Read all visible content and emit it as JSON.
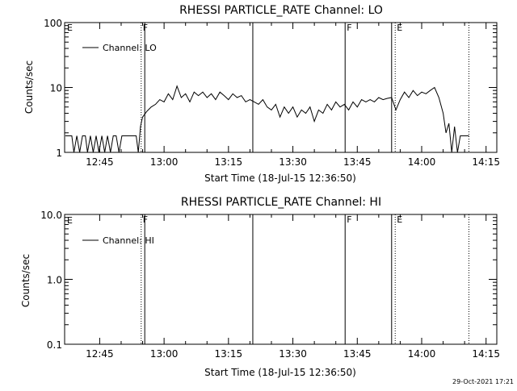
{
  "chart_data": [
    {
      "type": "line",
      "title": "RHESSI PARTICLE_RATE Channel: LO",
      "xlabel": "Start Time (18-Jul-15 12:36:50)",
      "ylabel": "Counts/sec",
      "y_scale": "log",
      "ylim": [
        1,
        100
      ],
      "xlim": [
        "12:36:50",
        "14:17:30"
      ],
      "x_ticks": [
        "12:45",
        "13:00",
        "13:15",
        "13:30",
        "13:45",
        "14:00",
        "14:15"
      ],
      "y_ticks": [
        "1",
        "10",
        "100"
      ],
      "legend": {
        "label": "Channel: LO",
        "placement": "top-left"
      },
      "markers": [
        {
          "time": "12:54:40",
          "label": "F",
          "style": "dotted"
        },
        {
          "time": "12:55:30",
          "label": "",
          "style": "solid"
        },
        {
          "time": "13:20:40",
          "label": "",
          "style": "solid"
        },
        {
          "time": "13:42:10",
          "label": "F",
          "style": "solid"
        },
        {
          "time": "13:53:00",
          "label": "",
          "style": "solid"
        },
        {
          "time": "13:53:50",
          "label": "E",
          "style": "dotted"
        },
        {
          "time": "14:11:00",
          "label": "",
          "style": "dotted"
        }
      ],
      "corner_label": "E",
      "series": [
        {
          "values": [
            {
              "x": "12:37:00",
              "y": 1.8
            },
            {
              "x": "12:38:30",
              "y": 1.8
            },
            {
              "x": "12:39:00",
              "y": 1.0
            },
            {
              "x": "12:39:40",
              "y": 1.8
            },
            {
              "x": "12:40:20",
              "y": 1.0
            },
            {
              "x": "12:41:00",
              "y": 1.8
            },
            {
              "x": "12:41:40",
              "y": 1.8
            },
            {
              "x": "12:42:10",
              "y": 1.0
            },
            {
              "x": "12:42:50",
              "y": 1.8
            },
            {
              "x": "12:43:30",
              "y": 1.0
            },
            {
              "x": "12:44:10",
              "y": 1.8
            },
            {
              "x": "12:44:50",
              "y": 1.0
            },
            {
              "x": "12:45:30",
              "y": 1.8
            },
            {
              "x": "12:46:10",
              "y": 1.0
            },
            {
              "x": "12:46:50",
              "y": 1.8
            },
            {
              "x": "12:47:30",
              "y": 1.0
            },
            {
              "x": "12:48:10",
              "y": 1.8
            },
            {
              "x": "12:48:50",
              "y": 1.8
            },
            {
              "x": "12:49:30",
              "y": 1.0
            },
            {
              "x": "12:50:10",
              "y": 1.8
            },
            {
              "x": "12:51:00",
              "y": 1.8
            },
            {
              "x": "12:52:30",
              "y": 1.8
            },
            {
              "x": "12:53:30",
              "y": 1.8
            },
            {
              "x": "12:54:00",
              "y": 1.0
            },
            {
              "x": "12:54:30",
              "y": 2.5
            },
            {
              "x": "12:55:00",
              "y": 3.5
            },
            {
              "x": "12:56:00",
              "y": 4.3
            },
            {
              "x": "12:57:00",
              "y": 5.0
            },
            {
              "x": "12:58:00",
              "y": 5.5
            },
            {
              "x": "12:59:00",
              "y": 6.5
            },
            {
              "x": "13:00:00",
              "y": 6.0
            },
            {
              "x": "13:01:00",
              "y": 8.0
            },
            {
              "x": "13:02:00",
              "y": 6.5
            },
            {
              "x": "13:03:00",
              "y": 10.5
            },
            {
              "x": "13:04:00",
              "y": 7.0
            },
            {
              "x": "13:05:00",
              "y": 8.0
            },
            {
              "x": "13:06:00",
              "y": 6.0
            },
            {
              "x": "13:07:00",
              "y": 8.5
            },
            {
              "x": "13:08:00",
              "y": 7.5
            },
            {
              "x": "13:09:00",
              "y": 8.5
            },
            {
              "x": "13:10:00",
              "y": 7.0
            },
            {
              "x": "13:11:00",
              "y": 8.0
            },
            {
              "x": "13:12:00",
              "y": 6.5
            },
            {
              "x": "13:13:00",
              "y": 8.5
            },
            {
              "x": "13:14:00",
              "y": 7.5
            },
            {
              "x": "13:15:00",
              "y": 6.5
            },
            {
              "x": "13:16:00",
              "y": 8.0
            },
            {
              "x": "13:17:00",
              "y": 7.0
            },
            {
              "x": "13:18:00",
              "y": 7.5
            },
            {
              "x": "13:19:00",
              "y": 6.0
            },
            {
              "x": "13:20:00",
              "y": 6.5
            },
            {
              "x": "13:21:00",
              "y": 6.0
            },
            {
              "x": "13:22:00",
              "y": 5.5
            },
            {
              "x": "13:23:00",
              "y": 6.5
            },
            {
              "x": "13:24:00",
              "y": 5.0
            },
            {
              "x": "13:25:00",
              "y": 4.5
            },
            {
              "x": "13:26:00",
              "y": 5.5
            },
            {
              "x": "13:27:00",
              "y": 3.5
            },
            {
              "x": "13:28:00",
              "y": 5.0
            },
            {
              "x": "13:29:00",
              "y": 4.0
            },
            {
              "x": "13:30:00",
              "y": 5.0
            },
            {
              "x": "13:31:00",
              "y": 3.5
            },
            {
              "x": "13:32:00",
              "y": 4.5
            },
            {
              "x": "13:33:00",
              "y": 4.0
            },
            {
              "x": "13:34:00",
              "y": 5.0
            },
            {
              "x": "13:35:00",
              "y": 3.0
            },
            {
              "x": "13:36:00",
              "y": 4.5
            },
            {
              "x": "13:37:00",
              "y": 4.0
            },
            {
              "x": "13:38:00",
              "y": 5.5
            },
            {
              "x": "13:39:00",
              "y": 4.5
            },
            {
              "x": "13:40:00",
              "y": 6.0
            },
            {
              "x": "13:41:00",
              "y": 5.0
            },
            {
              "x": "13:42:00",
              "y": 5.5
            },
            {
              "x": "13:43:00",
              "y": 4.5
            },
            {
              "x": "13:44:00",
              "y": 6.0
            },
            {
              "x": "13:45:00",
              "y": 5.0
            },
            {
              "x": "13:46:00",
              "y": 6.5
            },
            {
              "x": "13:47:00",
              "y": 6.0
            },
            {
              "x": "13:48:00",
              "y": 6.5
            },
            {
              "x": "13:49:00",
              "y": 6.0
            },
            {
              "x": "13:50:00",
              "y": 7.0
            },
            {
              "x": "13:51:00",
              "y": 6.5
            },
            {
              "x": "13:52:00",
              "y": 6.8
            },
            {
              "x": "13:53:00",
              "y": 7.0
            },
            {
              "x": "13:54:00",
              "y": 4.5
            },
            {
              "x": "13:55:00",
              "y": 6.5
            },
            {
              "x": "13:56:00",
              "y": 8.5
            },
            {
              "x": "13:57:00",
              "y": 7.0
            },
            {
              "x": "13:58:00",
              "y": 9.0
            },
            {
              "x": "13:59:00",
              "y": 7.5
            },
            {
              "x": "14:00:00",
              "y": 8.5
            },
            {
              "x": "14:01:00",
              "y": 8.0
            },
            {
              "x": "14:02:00",
              "y": 9.0
            },
            {
              "x": "14:03:00",
              "y": 10.0
            },
            {
              "x": "14:04:00",
              "y": 7.0
            },
            {
              "x": "14:05:00",
              "y": 4.0
            },
            {
              "x": "14:05:40",
              "y": 2.0
            },
            {
              "x": "14:06:20",
              "y": 2.8
            },
            {
              "x": "14:07:00",
              "y": 1.0
            },
            {
              "x": "14:07:40",
              "y": 2.5
            },
            {
              "x": "14:08:20",
              "y": 1.0
            },
            {
              "x": "14:09:00",
              "y": 1.8
            },
            {
              "x": "14:10:00",
              "y": 1.8
            },
            {
              "x": "14:11:00",
              "y": 1.8
            }
          ]
        }
      ]
    },
    {
      "type": "line",
      "title": "RHESSI PARTICLE_RATE Channel: HI",
      "xlabel": "Start Time (18-Jul-15 12:36:50)",
      "ylabel": "Counts/sec",
      "y_scale": "log",
      "ylim": [
        0.1,
        10.0
      ],
      "xlim": [
        "12:36:50",
        "14:17:30"
      ],
      "x_ticks": [
        "12:45",
        "13:00",
        "13:15",
        "13:30",
        "13:45",
        "14:00",
        "14:15"
      ],
      "y_ticks": [
        "0.1",
        "1.0",
        "10.0"
      ],
      "legend": {
        "label": "Channel: HI",
        "placement": "top-left"
      },
      "markers": [
        {
          "time": "12:54:40",
          "label": "F",
          "style": "dotted"
        },
        {
          "time": "12:55:30",
          "label": "",
          "style": "solid"
        },
        {
          "time": "13:20:40",
          "label": "",
          "style": "solid"
        },
        {
          "time": "13:42:10",
          "label": "F",
          "style": "solid"
        },
        {
          "time": "13:53:00",
          "label": "",
          "style": "solid"
        },
        {
          "time": "13:53:50",
          "label": "E",
          "style": "dotted"
        },
        {
          "time": "14:11:00",
          "label": "",
          "style": "dotted"
        }
      ],
      "corner_label": "E",
      "series": [
        {
          "values": []
        }
      ]
    }
  ],
  "footer": {
    "timestamp": "29-Oct-2021 17:21"
  }
}
